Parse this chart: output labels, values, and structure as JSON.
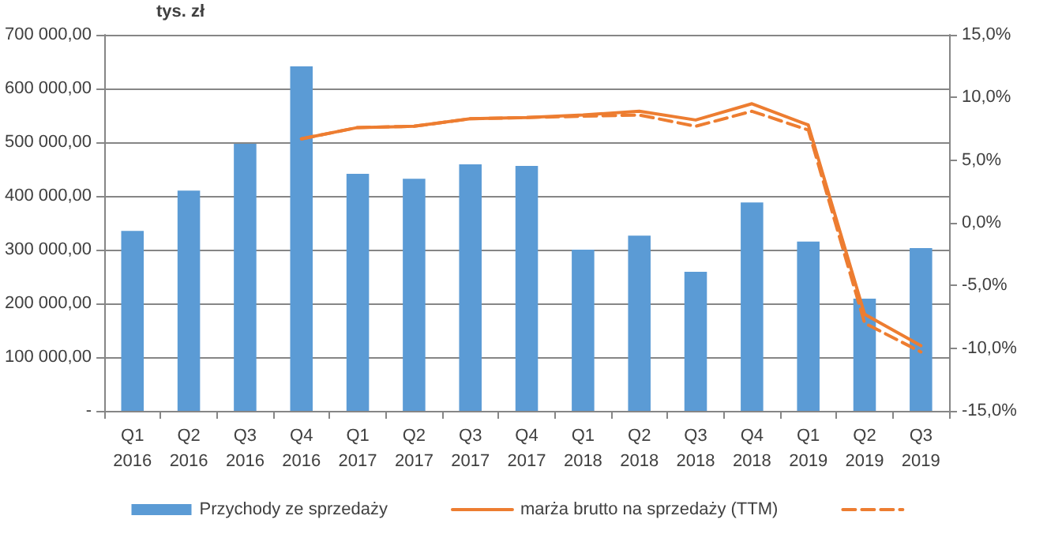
{
  "chart_data": {
    "type": "bar",
    "ylabel": "tys. zł",
    "categories": [
      "Q1\n2016",
      "Q2\n2016",
      "Q3\n2016",
      "Q4\n2016",
      "Q1\n2017",
      "Q2\n2017",
      "Q3\n2017",
      "Q4\n2017",
      "Q1\n2018",
      "Q2\n2018",
      "Q3\n2018",
      "Q4\n2018",
      "Q1\n2019",
      "Q2\n2019",
      "Q3\n2019"
    ],
    "series": [
      {
        "name": "Przychody ze sprzedaży",
        "color": "#5b9bd5",
        "values": [
          335000,
          410000,
          497000,
          641000,
          441000,
          432000,
          459000,
          456000,
          300000,
          326000,
          259000,
          388000,
          315000,
          209000,
          303000
        ]
      },
      {
        "name": "marża brutto na sprzedaży (TTM)",
        "type": "line",
        "axis": "y2",
        "color": "#ed7d31",
        "line_style": "solid",
        "values": [
          null,
          null,
          null,
          6.7,
          7.6,
          7.7,
          8.3,
          8.4,
          8.6,
          8.9,
          8.2,
          9.5,
          7.8,
          -7.3,
          -9.8
        ]
      },
      {
        "type": "line",
        "axis": "y2",
        "color": "#ed7d31",
        "line_style": "dashed",
        "values": [
          null,
          null,
          null,
          6.7,
          7.6,
          7.7,
          8.3,
          8.4,
          8.5,
          8.6,
          7.7,
          8.9,
          7.4,
          -8.0,
          -10.3
        ]
      }
    ],
    "ylim": [
      0,
      700000
    ],
    "yticks": [
      {
        "value": 0,
        "label": "-"
      },
      {
        "value": 100000,
        "label": "100 000,00"
      },
      {
        "value": 200000,
        "label": "200 000,00"
      },
      {
        "value": 300000,
        "label": "300 000,00"
      },
      {
        "value": 400000,
        "label": "400 000,00"
      },
      {
        "value": 500000,
        "label": "500 000,00"
      },
      {
        "value": 600000,
        "label": "600 000,00"
      },
      {
        "value": 700000,
        "label": "700 000,00"
      }
    ],
    "y2lim": [
      -15,
      15
    ],
    "y2ticks": [
      {
        "value": -15,
        "label": "-15,0%"
      },
      {
        "value": -10,
        "label": "-10,0%"
      },
      {
        "value": -5,
        "label": "-5,0%"
      },
      {
        "value": 0,
        "label": "0,0%"
      },
      {
        "value": 5,
        "label": "5,0%"
      },
      {
        "value": 10,
        "label": "10,0%"
      },
      {
        "value": 15,
        "label": "15,0%"
      }
    ],
    "grid": "y",
    "legend": "bottom",
    "marker": "none"
  }
}
